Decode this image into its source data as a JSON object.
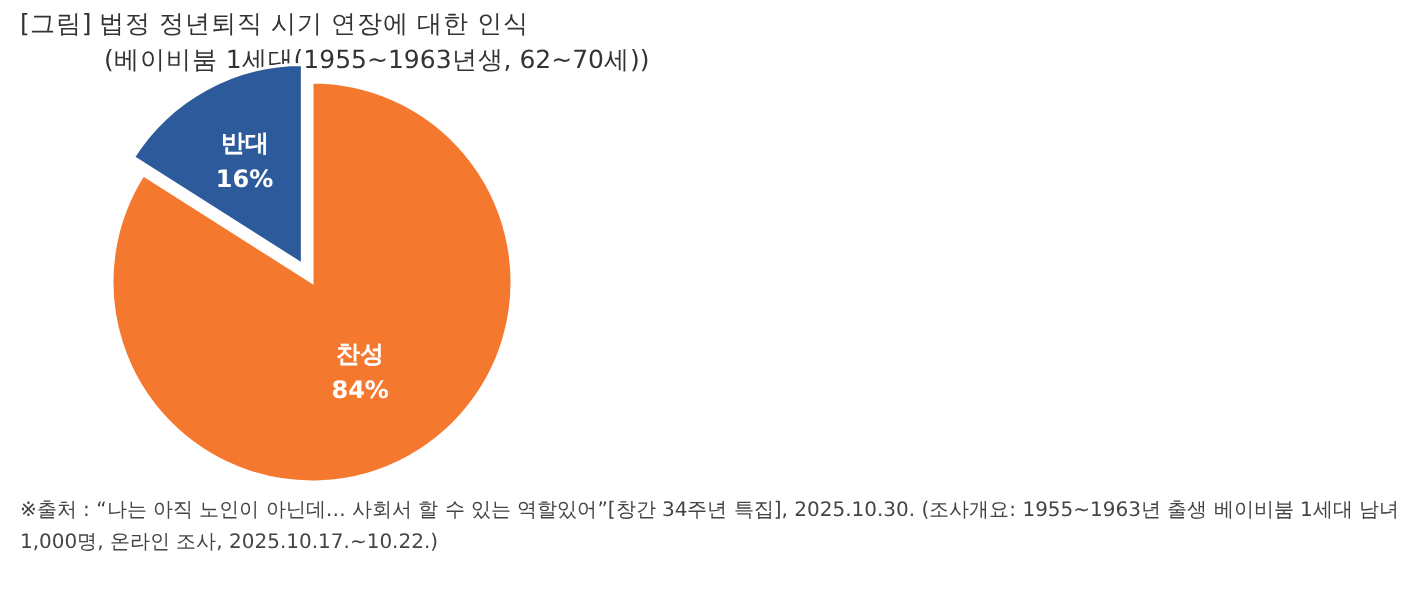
{
  "chart_data": {
    "type": "pie",
    "title": "[그림] 법정 정년퇴직 시기 연장에 대한 인식",
    "subtitle": "(베이비붐 1세대(1955~1963년생, 62~70세))",
    "categories": [
      "찬성",
      "반대"
    ],
    "values": [
      84,
      16
    ],
    "colors": [
      "#f5782f",
      "#2d5a9b"
    ],
    "value_labels": [
      "84%",
      "16%"
    ],
    "annotations": [
      "※출처 : “나는 아직 노인이 아닌데… 사회서 할 수 있는 역할있어”[창간 34주년 특집], 2025.10.30. (조사개요: 1955~1963년 출생 베이비붐 1세대 남녀 1,000명, 온라인 조사, 2025.10.17.~10.22.)"
    ]
  }
}
